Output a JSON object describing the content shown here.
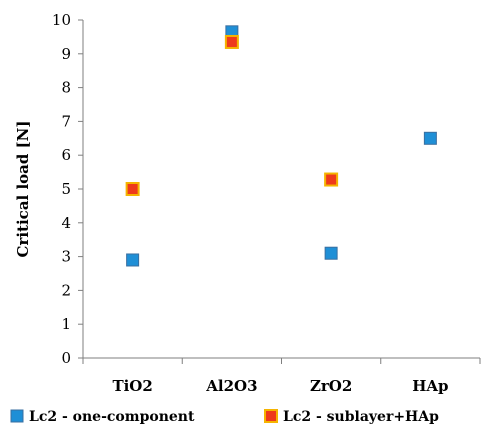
{
  "chart_data": {
    "type": "scatter",
    "title": "",
    "xlabel": "",
    "ylabel": "Critical load [N]",
    "categories": [
      "TiO2",
      "Al2O3",
      "ZrO2",
      "HAp"
    ],
    "ylim": [
      0,
      10
    ],
    "yticks": [
      0,
      1,
      2,
      3,
      4,
      5,
      6,
      7,
      8,
      9,
      10
    ],
    "grid": false,
    "legend_position": "bottom",
    "series": [
      {
        "name": "Lc2 - one-component",
        "values": [
          2.9,
          9.65,
          3.1,
          6.5
        ],
        "color": "#1f8fd6",
        "marker": "square"
      },
      {
        "name": "Lc2 - sublayer+HAp",
        "values": [
          5.0,
          9.35,
          5.28,
          null
        ],
        "color": "#ee3a1c",
        "border_color": "#f5b400",
        "marker": "square"
      }
    ]
  }
}
